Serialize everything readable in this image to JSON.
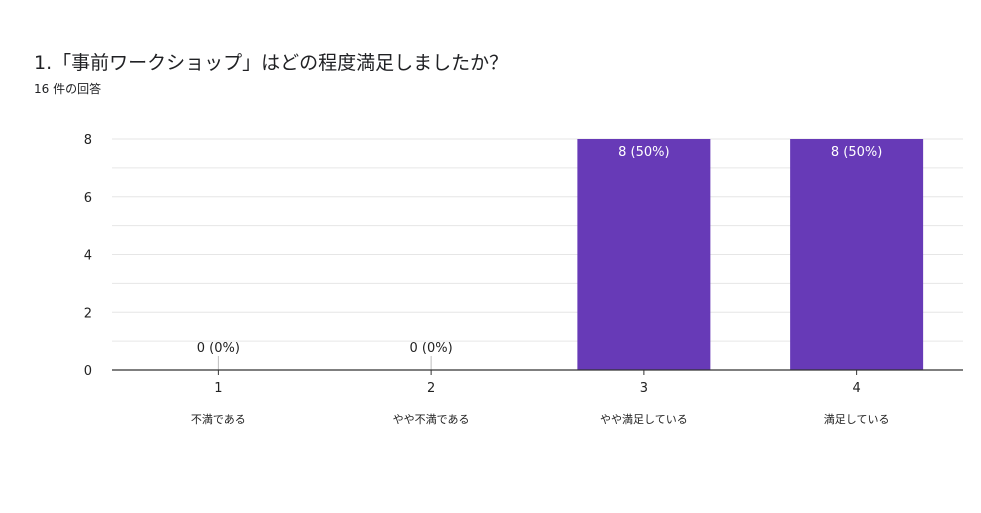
{
  "question": {
    "title": "1.「事前ワークショップ」はどの程度満足しましたか？",
    "responses": "16 件の回答"
  },
  "colors": {
    "bar": "#673ab7",
    "grid": "#e6e6e6",
    "axis": "#333333",
    "label_inside": "#ffffff",
    "label_outside": "#222222"
  },
  "chart_data": {
    "type": "bar",
    "categories": [
      "1",
      "2",
      "3",
      "4"
    ],
    "category_descriptions": [
      "不満である",
      "やや不満である",
      "やや満足している",
      "満足している"
    ],
    "values": [
      0,
      0,
      8,
      8
    ],
    "data_labels": [
      "0 (0%)",
      "0 (0%)",
      "8 (50%)",
      "8 (50%)"
    ],
    "title": "",
    "xlabel": "",
    "ylabel": "",
    "ylim": [
      0,
      8
    ],
    "yticks": [
      0,
      2,
      4,
      6,
      8
    ],
    "grid": true
  }
}
